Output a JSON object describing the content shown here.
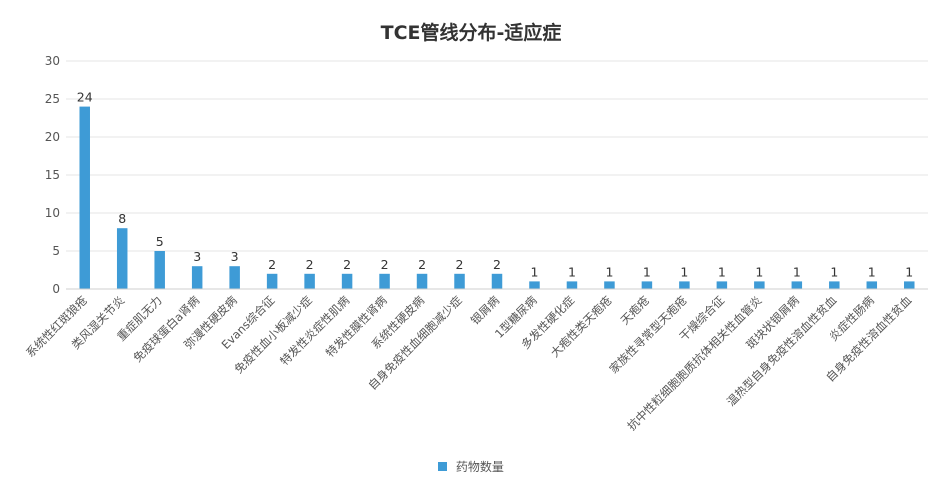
{
  "chart_data": {
    "type": "bar",
    "title": "TCE管线分布-适应症",
    "xlabel": "",
    "ylabel": "",
    "ylim": [
      0,
      30
    ],
    "yticks": [
      0,
      5,
      10,
      15,
      20,
      25,
      30
    ],
    "grid": true,
    "legend": "bottom",
    "bar_color": "#3e9bd6",
    "categories": [
      "系统性红斑狼疮",
      "类风湿关节炎",
      "重症肌无力",
      "免疫球蛋白a肾病",
      "弥漫性硬皮病",
      "Evans综合征",
      "免疫性血小板减少症",
      "特发性炎症性肌病",
      "特发性膜性肾病",
      "系统性硬皮病",
      "自身免疫性血细胞减少症",
      "银屑病",
      "1型糖尿病",
      "多发性硬化症",
      "大疱性类天疱疮",
      "天疱疮",
      "家族性寻常型天疱疮",
      "干燥综合征",
      "抗中性粒细胞胞质抗体相关性血管炎",
      "斑块状银屑病",
      "温热型自身免疫性溶血性贫血",
      "炎症性肠病",
      "自身免疫性溶血性贫血"
    ],
    "series": [
      {
        "name": "药物数量",
        "values": [
          24,
          8,
          5,
          3,
          3,
          2,
          2,
          2,
          2,
          2,
          2,
          2,
          1,
          1,
          1,
          1,
          1,
          1,
          1,
          1,
          1,
          1,
          1
        ]
      }
    ]
  }
}
